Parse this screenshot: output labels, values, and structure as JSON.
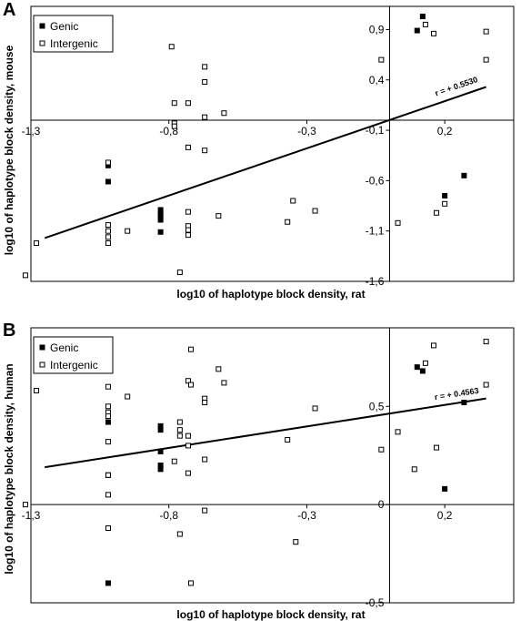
{
  "chart_data": [
    {
      "panel": "A",
      "type": "scatter",
      "xlabel": "log10 of haplotype block density, rat",
      "ylabel": "log10 of haplotype block density, mouse",
      "xlim": [
        -1.3,
        0.45
      ],
      "ylim": [
        -1.6,
        1.13
      ],
      "x_ticks": [
        -1.3,
        -0.8,
        -0.3,
        0.2
      ],
      "x_tick_labels": [
        "-1,3",
        "-0,8",
        "-0,3",
        "0,2"
      ],
      "y_ticks": [
        -1.6,
        -1.1,
        -0.6,
        -0.1,
        0.4,
        0.9
      ],
      "y_tick_labels": [
        "-1,6",
        "-1,1",
        "-0,6",
        "-0,1",
        "0,4",
        "0,9"
      ],
      "grid": false,
      "legend_position": "top-left",
      "series": [
        {
          "name": "Genic",
          "marker": "filled-square",
          "color": "#000000",
          "points": [
            [
              -1.02,
              -0.45
            ],
            [
              -1.02,
              -0.61
            ],
            [
              -0.83,
              -0.89
            ],
            [
              -0.83,
              -0.93
            ],
            [
              -0.83,
              -0.96
            ],
            [
              -0.83,
              -0.99
            ],
            [
              -0.83,
              -1.11
            ],
            [
              0.1,
              0.89
            ],
            [
              0.12,
              1.03
            ],
            [
              0.2,
              -0.75
            ],
            [
              0.27,
              -0.55
            ]
          ]
        },
        {
          "name": "Intergenic",
          "marker": "open-square",
          "color": "#000000",
          "points": [
            [
              -1.32,
              -1.54
            ],
            [
              -1.28,
              -1.22
            ],
            [
              -1.02,
              -0.42
            ],
            [
              -1.02,
              -1.04
            ],
            [
              -1.02,
              -1.1
            ],
            [
              -1.02,
              -1.16
            ],
            [
              -1.02,
              -1.22
            ],
            [
              -0.95,
              -1.1
            ],
            [
              -0.79,
              0.73
            ],
            [
              -0.78,
              0.17
            ],
            [
              -0.78,
              -0.03
            ],
            [
              -0.78,
              -0.06
            ],
            [
              -0.76,
              -1.51
            ],
            [
              -0.73,
              0.17
            ],
            [
              -0.73,
              -0.27
            ],
            [
              -0.73,
              -0.91
            ],
            [
              -0.73,
              -1.05
            ],
            [
              -0.73,
              -1.09
            ],
            [
              -0.73,
              -1.14
            ],
            [
              -0.67,
              0.53
            ],
            [
              -0.67,
              0.38
            ],
            [
              -0.67,
              0.03
            ],
            [
              -0.67,
              -0.3
            ],
            [
              -0.62,
              -0.95
            ],
            [
              -0.6,
              0.07
            ],
            [
              -0.37,
              -1.01
            ],
            [
              -0.35,
              -0.8
            ],
            [
              -0.27,
              -0.9
            ],
            [
              -0.03,
              0.6
            ],
            [
              0.03,
              -1.02
            ],
            [
              0.13,
              0.95
            ],
            [
              0.16,
              0.86
            ],
            [
              0.17,
              -0.92
            ],
            [
              0.2,
              -0.83
            ],
            [
              0.35,
              0.88
            ],
            [
              0.35,
              0.6
            ]
          ]
        }
      ],
      "trendline": {
        "x": [
          -1.25,
          0.35
        ],
        "y": [
          -1.17,
          0.33
        ],
        "label": "r = + 0.5530"
      }
    },
    {
      "panel": "B",
      "type": "scatter",
      "xlabel": "log10 of haplotype block density, rat",
      "ylabel": "log10 of haplotype block density, human",
      "xlim": [
        -1.3,
        0.45
      ],
      "ylim": [
        -0.5,
        0.9
      ],
      "x_ticks": [
        -1.3,
        -0.8,
        -0.3,
        0.2
      ],
      "x_tick_labels": [
        "-1,3",
        "-0,8",
        "-0,3",
        "0,2"
      ],
      "y_ticks": [
        -0.5,
        0,
        0.5
      ],
      "y_tick_labels": [
        "-0,5",
        "0",
        "0,5"
      ],
      "grid": false,
      "legend_position": "top-left",
      "series": [
        {
          "name": "Genic",
          "marker": "filled-square",
          "color": "#000000",
          "points": [
            [
              -1.02,
              0.42
            ],
            [
              -1.02,
              0.15
            ],
            [
              -1.02,
              -0.4
            ],
            [
              -0.83,
              0.4
            ],
            [
              -0.83,
              0.38
            ],
            [
              -0.83,
              0.27
            ],
            [
              -0.83,
              0.2
            ],
            [
              -0.83,
              0.18
            ],
            [
              0.1,
              0.7
            ],
            [
              0.12,
              0.68
            ],
            [
              0.2,
              0.08
            ],
            [
              0.27,
              0.52
            ]
          ]
        },
        {
          "name": "Intergenic",
          "marker": "open-square",
          "color": "#000000",
          "points": [
            [
              -1.32,
              0.0
            ],
            [
              -1.28,
              0.58
            ],
            [
              -1.02,
              0.6
            ],
            [
              -1.02,
              0.5
            ],
            [
              -1.02,
              0.47
            ],
            [
              -1.02,
              0.45
            ],
            [
              -1.02,
              0.32
            ],
            [
              -1.02,
              0.15
            ],
            [
              -1.02,
              0.05
            ],
            [
              -1.02,
              -0.12
            ],
            [
              -0.95,
              0.55
            ],
            [
              -0.78,
              0.22
            ],
            [
              -0.76,
              0.42
            ],
            [
              -0.76,
              0.38
            ],
            [
              -0.76,
              0.35
            ],
            [
              -0.76,
              -0.15
            ],
            [
              -0.73,
              0.63
            ],
            [
              -0.73,
              0.35
            ],
            [
              -0.73,
              0.3
            ],
            [
              -0.73,
              0.16
            ],
            [
              -0.72,
              0.79
            ],
            [
              -0.72,
              0.61
            ],
            [
              -0.72,
              -0.4
            ],
            [
              -0.67,
              0.54
            ],
            [
              -0.67,
              0.52
            ],
            [
              -0.67,
              0.23
            ],
            [
              -0.67,
              -0.03
            ],
            [
              -0.62,
              0.69
            ],
            [
              -0.6,
              0.62
            ],
            [
              -0.37,
              0.33
            ],
            [
              -0.34,
              -0.19
            ],
            [
              -0.27,
              0.49
            ],
            [
              -0.03,
              0.28
            ],
            [
              0.03,
              0.37
            ],
            [
              0.09,
              0.18
            ],
            [
              0.13,
              0.72
            ],
            [
              0.16,
              0.81
            ],
            [
              0.17,
              0.29
            ],
            [
              0.35,
              0.83
            ],
            [
              0.35,
              0.61
            ]
          ]
        }
      ],
      "trendline": {
        "x": [
          -1.25,
          0.35
        ],
        "y": [
          0.19,
          0.54
        ],
        "label": "r = + 0.4563"
      }
    }
  ]
}
